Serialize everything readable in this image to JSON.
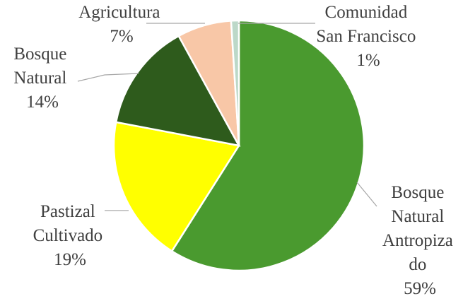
{
  "chart_data": {
    "type": "pie",
    "title": "",
    "legend": "none",
    "slices": [
      {
        "name": "Bosque Natural Antropizado",
        "label_lines": [
          "Bosque",
          "Natural",
          "Antropiza",
          "do"
        ],
        "value_label": "59%",
        "value": 59,
        "color": "#4a9a2f"
      },
      {
        "name": "Pastizal Cultivado",
        "label_lines": [
          "Pastizal",
          "Cultivado"
        ],
        "value_label": "19%",
        "value": 19,
        "color": "#ffff00"
      },
      {
        "name": "Bosque Natural",
        "label_lines": [
          "Bosque",
          "Natural"
        ],
        "value_label": "14%",
        "value": 14,
        "color": "#2e5b1c"
      },
      {
        "name": "Agricultura",
        "label_lines": [
          "Agricultura"
        ],
        "value_label": "7%",
        "value": 7,
        "color": "#f8c7a7"
      },
      {
        "name": "Comunidad San Francisco",
        "label_lines": [
          "Comunidad",
          "San Francisco"
        ],
        "value_label": "1%",
        "value": 1,
        "color": "#bcd8c8"
      }
    ]
  }
}
